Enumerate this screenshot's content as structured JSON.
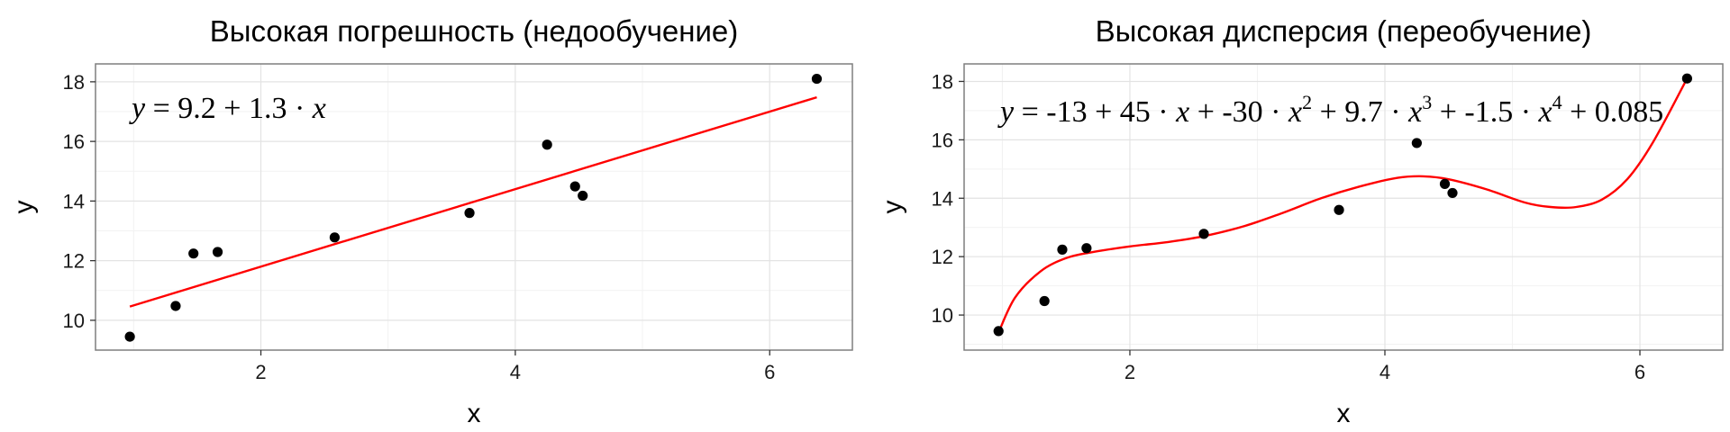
{
  "chart_data": [
    {
      "type": "scatter",
      "title": "Высокая погрешность (недообучение)",
      "xlabel": "x",
      "ylabel": "y",
      "xlim": [
        0.7,
        6.65
      ],
      "ylim": [
        9.0,
        18.6
      ],
      "xticks": [
        2,
        4,
        6
      ],
      "yticks": [
        10,
        12,
        14,
        16,
        18
      ],
      "xtick_labels": [
        "2",
        "4",
        "6"
      ],
      "ytick_labels": [
        "10",
        "12",
        "14",
        "16",
        "18"
      ],
      "grid": true,
      "points": {
        "x": [
          0.97,
          1.33,
          1.47,
          1.66,
          2.58,
          3.64,
          4.25,
          4.47,
          4.53,
          6.37
        ],
        "y": [
          9.45,
          10.48,
          12.24,
          12.29,
          12.78,
          13.6,
          15.89,
          14.49,
          14.18,
          18.1
        ]
      },
      "fit": {
        "kind": "linear",
        "coefficients": [
          9.2,
          1.3
        ],
        "x_range": [
          0.97,
          6.37
        ],
        "color": "#ff0000"
      },
      "equation": [
        {
          "t": "y",
          "i": true
        },
        {
          "t": " = 9.2 + 1.3 · "
        },
        {
          "t": "x",
          "i": true
        }
      ],
      "point_color": "#000000"
    },
    {
      "type": "scatter",
      "title": "Высокая дисперсия (переобучение)",
      "xlabel": "x",
      "ylabel": "y",
      "xlim": [
        0.7,
        6.65
      ],
      "ylim": [
        8.8,
        18.6
      ],
      "xticks": [
        2,
        4,
        6
      ],
      "yticks": [
        10,
        12,
        14,
        16,
        18
      ],
      "xtick_labels": [
        "2",
        "4",
        "6"
      ],
      "ytick_labels": [
        "10",
        "12",
        "14",
        "16",
        "18"
      ],
      "grid": true,
      "points": {
        "x": [
          0.97,
          1.33,
          1.47,
          1.66,
          2.58,
          3.64,
          4.25,
          4.47,
          4.53,
          6.37
        ],
        "y": [
          9.45,
          10.48,
          12.24,
          12.29,
          12.78,
          13.6,
          15.89,
          14.49,
          14.18,
          18.1
        ]
      },
      "fit": {
        "kind": "curve",
        "x": [
          0.97,
          1.1,
          1.3,
          1.5,
          1.7,
          2.0,
          2.3,
          2.6,
          2.9,
          3.2,
          3.5,
          3.8,
          4.1,
          4.3,
          4.5,
          4.8,
          5.1,
          5.3,
          5.5,
          5.7,
          5.9,
          6.1,
          6.37
        ],
        "y": [
          9.4,
          10.6,
          11.5,
          11.95,
          12.15,
          12.35,
          12.5,
          12.72,
          13.05,
          13.5,
          14.0,
          14.4,
          14.7,
          14.75,
          14.65,
          14.3,
          13.85,
          13.7,
          13.7,
          13.95,
          14.65,
          15.9,
          18.1
        ],
        "color": "#ff0000"
      },
      "equation": [
        {
          "t": "y",
          "i": true
        },
        {
          "t": " = -13 + 45 · "
        },
        {
          "t": "x",
          "i": true
        },
        {
          "t": " + -30 · "
        },
        {
          "t": "x",
          "i": true
        },
        {
          "t": "2",
          "sup": true
        },
        {
          "t": " + 9.7 · "
        },
        {
          "t": "x",
          "i": true
        },
        {
          "t": "3",
          "sup": true
        },
        {
          "t": " + -1.5 · "
        },
        {
          "t": "x",
          "i": true
        },
        {
          "t": "4",
          "sup": true
        },
        {
          "t": " + 0.085"
        }
      ],
      "point_color": "#000000"
    }
  ]
}
